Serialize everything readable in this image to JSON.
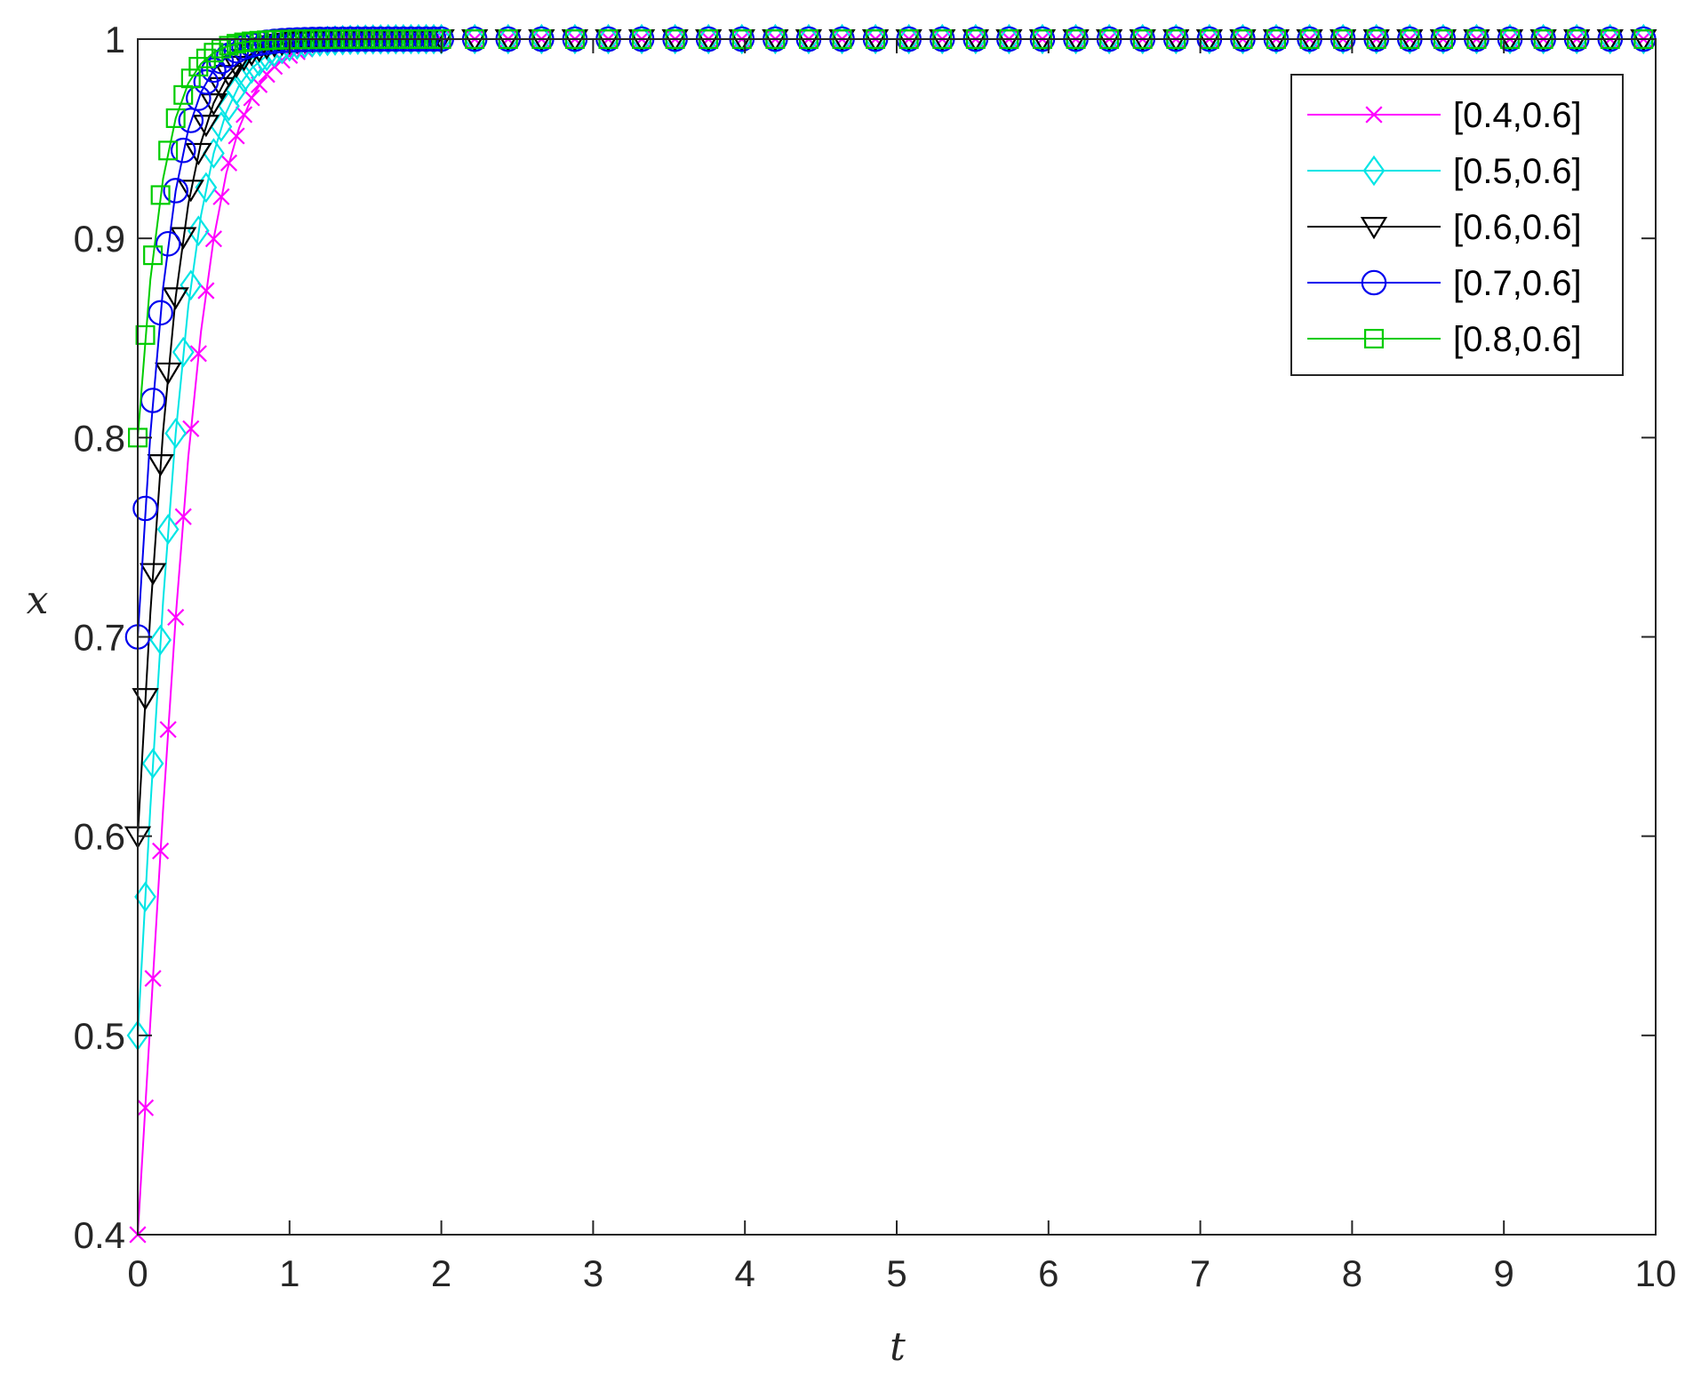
{
  "chart_data": {
    "type": "line",
    "xlabel": "t",
    "ylabel": "x",
    "xlim": [
      0,
      10
    ],
    "ylim": [
      0.4,
      1
    ],
    "xticks": [
      "0",
      "1",
      "2",
      "3",
      "4",
      "5",
      "6",
      "7",
      "8",
      "9",
      "10"
    ],
    "yticks": [
      "0.4",
      "0.5",
      "0.6",
      "0.7",
      "0.8",
      "0.9",
      "1"
    ],
    "grid": false,
    "box": true,
    "legend_position": "top-right",
    "model": "logistic x(t) = x0 / (x0 + (1 - x0) * exp(-rate * t))",
    "series": [
      {
        "name": "[0.4,0.6]",
        "x0": 0.4,
        "rate": 5.2,
        "color": "#ff00ff",
        "marker": "x"
      },
      {
        "name": "[0.5,0.6]",
        "x0": 0.5,
        "rate": 5.6,
        "color": "#00e5e5",
        "marker": "diamond"
      },
      {
        "name": "[0.6,0.6]",
        "x0": 0.6,
        "rate": 6.0,
        "color": "#000000",
        "marker": "triangle-down"
      },
      {
        "name": "[0.7,0.6]",
        "x0": 0.7,
        "rate": 6.6,
        "color": "#0000ee",
        "marker": "circle"
      },
      {
        "name": "[0.8,0.6]",
        "x0": 0.8,
        "rate": 7.2,
        "color": "#00cc00",
        "marker": "square"
      }
    ]
  }
}
